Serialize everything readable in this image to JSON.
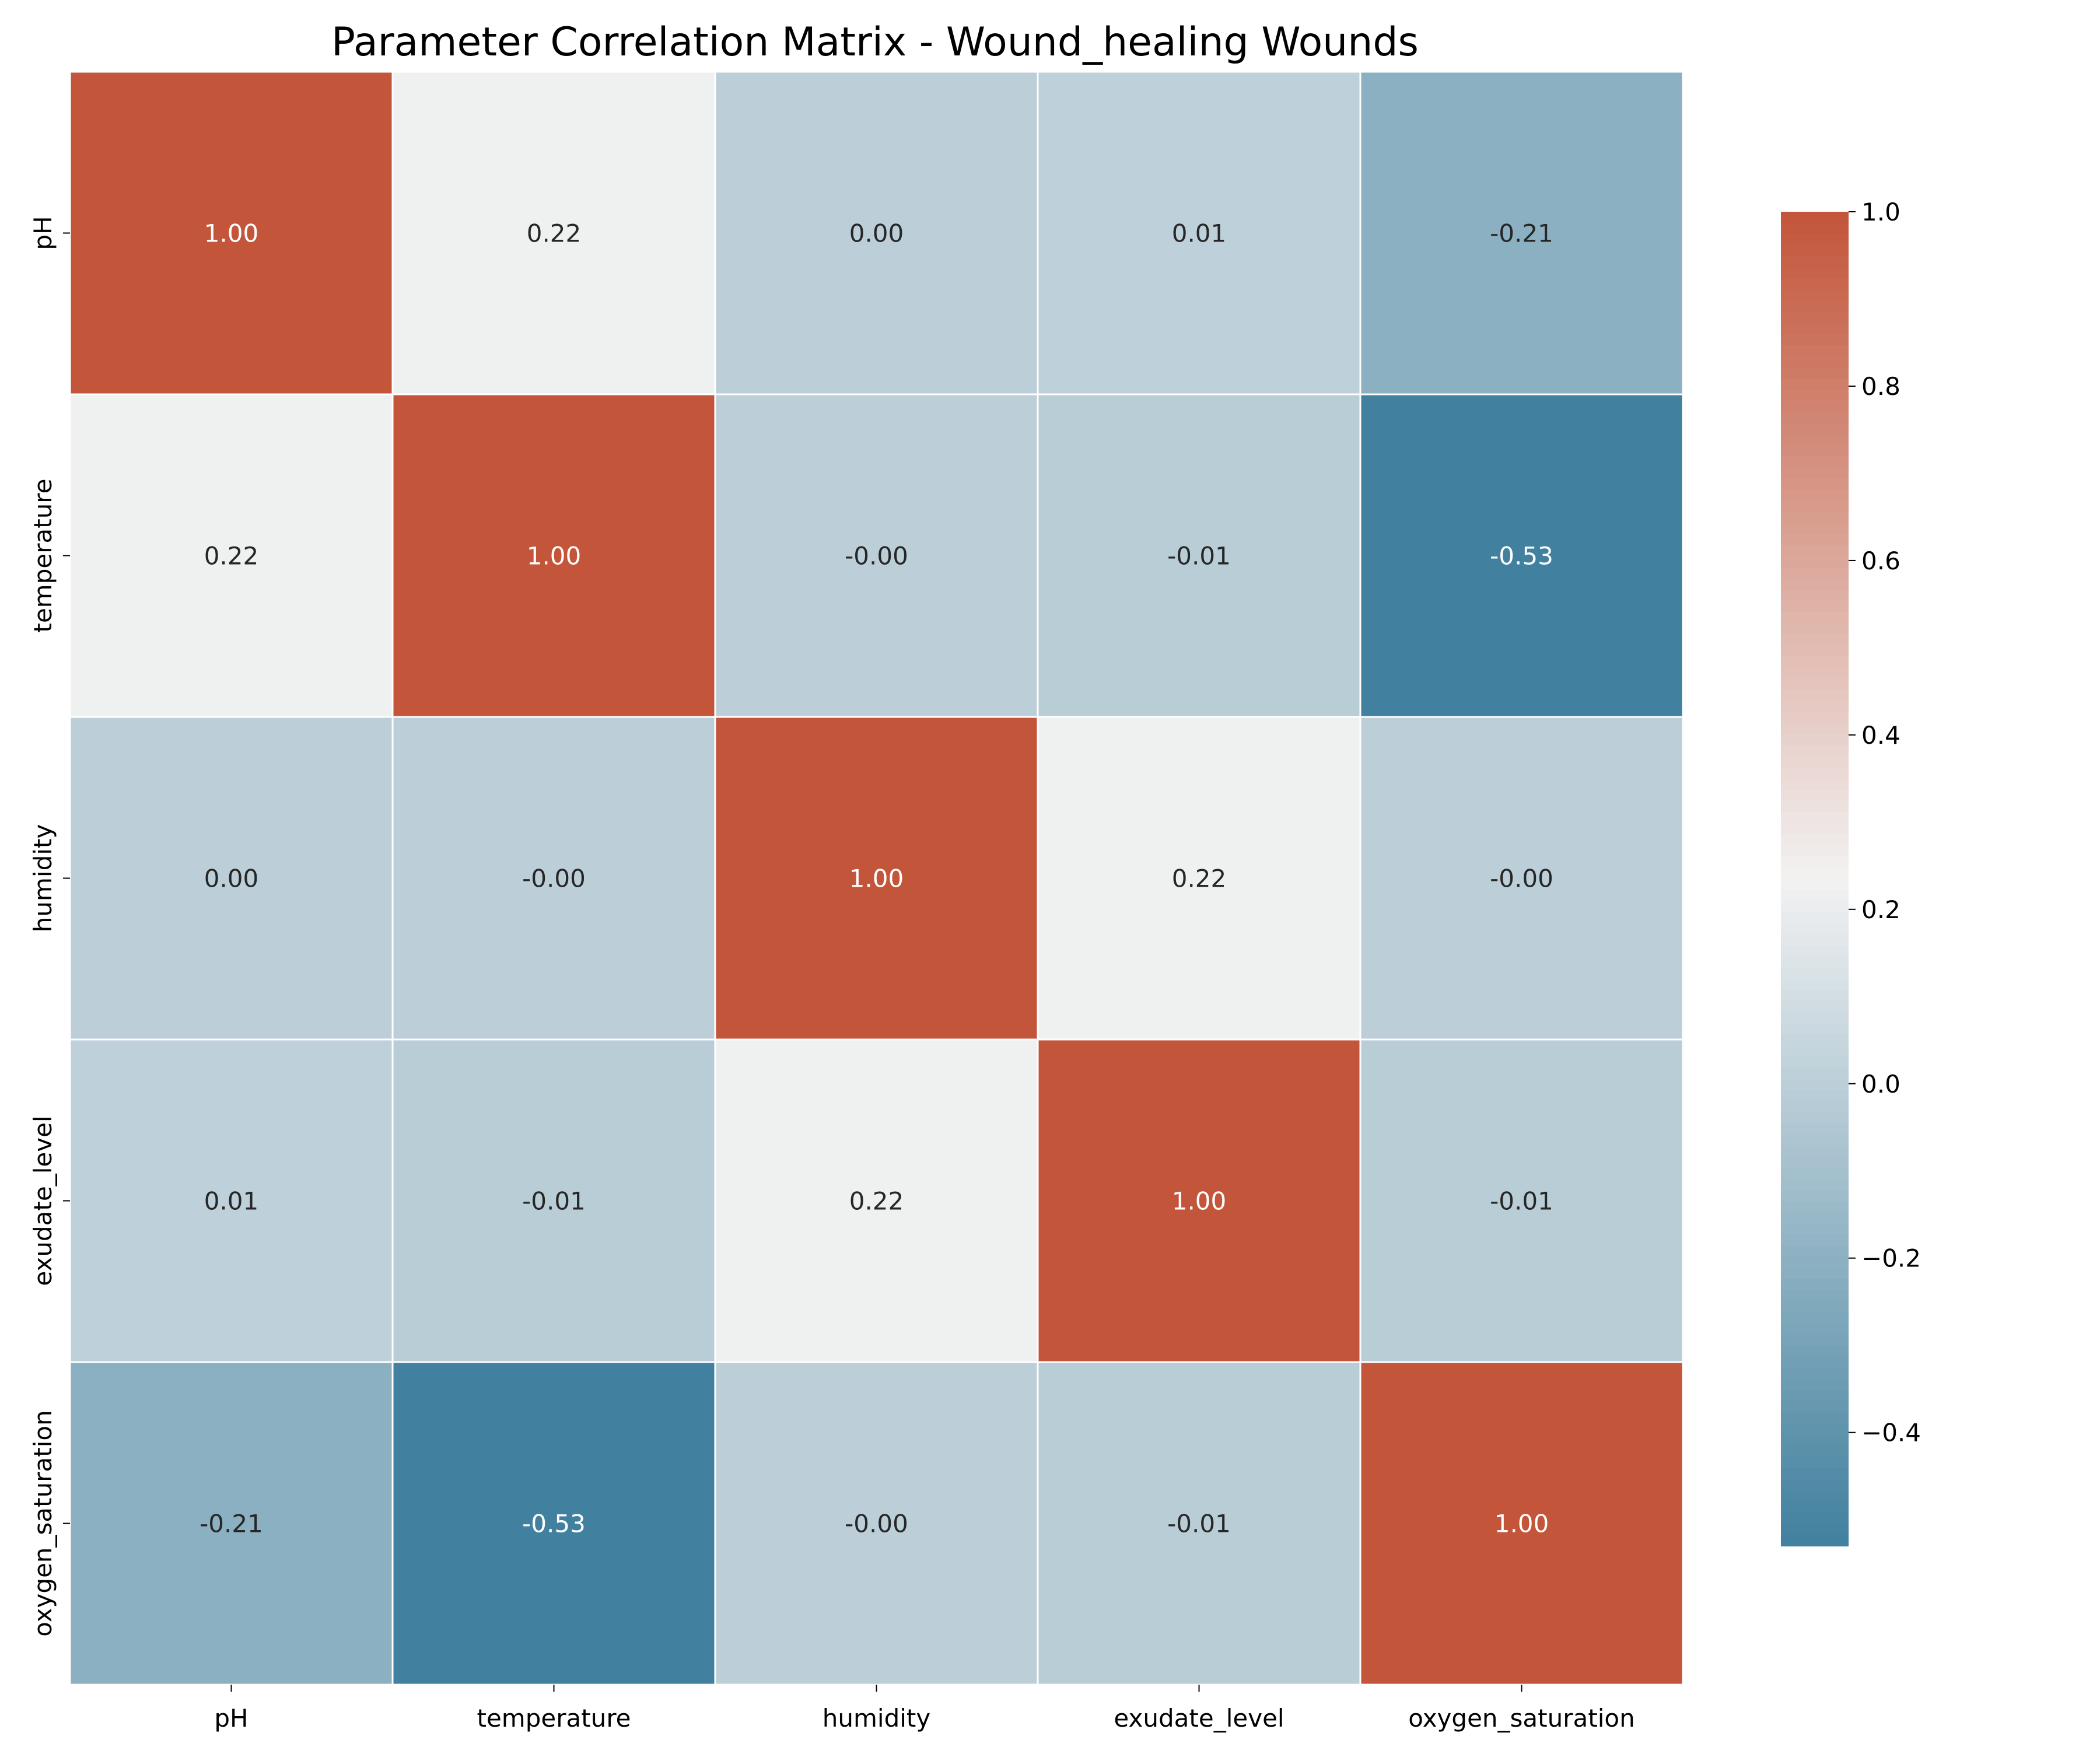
{
  "chart_data": {
    "type": "heatmap",
    "title": "Parameter Correlation Matrix - Wound_healing Wounds",
    "xlabel": "",
    "ylabel": "",
    "x_categories": [
      "pH",
      "temperature",
      "humidity",
      "exudate_level",
      "oxygen_saturation"
    ],
    "y_categories": [
      "pH",
      "temperature",
      "humidity",
      "exudate_level",
      "oxygen_saturation"
    ],
    "values": [
      [
        1.0,
        0.22,
        0.0,
        0.01,
        -0.21
      ],
      [
        0.22,
        1.0,
        -0.0,
        -0.01,
        -0.53
      ],
      [
        0.0,
        -0.0,
        1.0,
        0.22,
        -0.0
      ],
      [
        0.01,
        -0.01,
        0.22,
        1.0,
        -0.01
      ],
      [
        -0.21,
        -0.53,
        -0.0,
        -0.01,
        1.0
      ]
    ],
    "annotations": [
      [
        "1.00",
        "0.22",
        "0.00",
        "0.01",
        "-0.21"
      ],
      [
        "0.22",
        "1.00",
        "-0.00",
        "-0.01",
        "-0.53"
      ],
      [
        "0.00",
        "-0.00",
        "1.00",
        "0.22",
        "-0.00"
      ],
      [
        "0.01",
        "-0.01",
        "0.22",
        "1.00",
        "-0.01"
      ],
      [
        "-0.21",
        "-0.53",
        "-0.00",
        "-0.01",
        "1.00"
      ]
    ],
    "colorbar": {
      "vmin": -0.53,
      "vmax": 1.0,
      "ticks": [
        -0.4,
        -0.2,
        0.0,
        0.2,
        0.4,
        0.6,
        0.8,
        1.0
      ],
      "tick_labels": [
        "−0.4",
        "−0.2",
        "0.0",
        "0.2",
        "0.4",
        "0.6",
        "0.8",
        "1.0"
      ]
    },
    "colormap": {
      "negative": "#41809e",
      "center": "#f2f2f2",
      "positive": "#c3553a"
    },
    "cell_border_color": "#ffffff",
    "grid": false,
    "legend": "colorbar-right"
  }
}
